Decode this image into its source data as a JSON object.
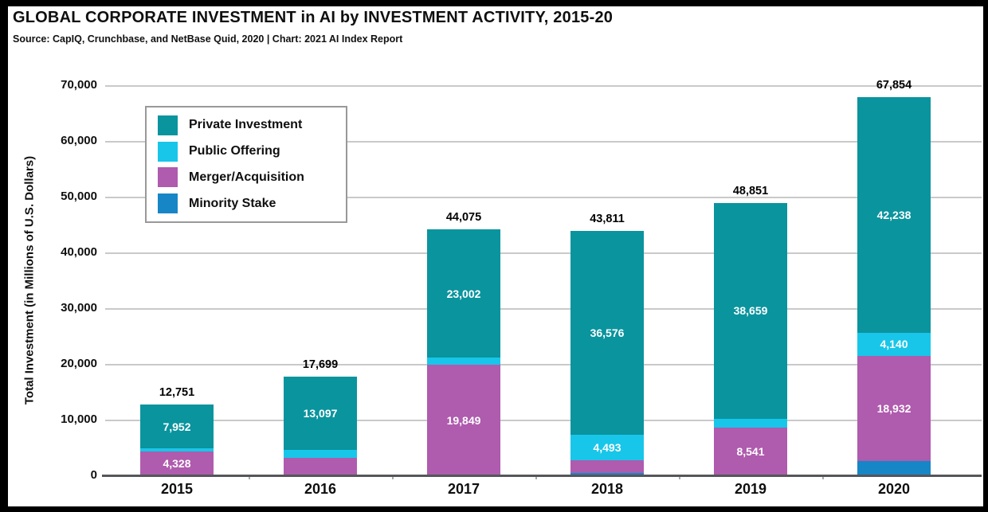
{
  "header": {
    "title": "GLOBAL CORPORATE INVESTMENT in AI by INVESTMENT ACTIVITY, 2015-20",
    "source": "Source: CapIQ, Crunchbase, and NetBase Quid, 2020 | Chart: 2021 AI Index Report"
  },
  "y_axis": {
    "title": "Total Investment (in Millions of U.S. Dollars)",
    "tick_labels": [
      "0",
      "10,000",
      "20,000",
      "30,000",
      "40,000",
      "50,000",
      "60,000",
      "70,000"
    ]
  },
  "legend": {
    "items": [
      {
        "label": "Private Investment",
        "color": "#0A949E"
      },
      {
        "label": "Public Offering",
        "color": "#18C6E9"
      },
      {
        "label": "Merger/Acquisition",
        "color": "#AF5BAE"
      },
      {
        "label": "Minority Stake",
        "color": "#1786C6"
      }
    ]
  },
  "chart_data": {
    "type": "bar",
    "stacked": true,
    "title": "GLOBAL CORPORATE INVESTMENT in AI by INVESTMENT ACTIVITY, 2015-20",
    "xlabel": "",
    "ylabel": "Total Investment (in Millions of U.S. Dollars)",
    "ylim": [
      0,
      70000
    ],
    "grid": true,
    "legend_position": "top-left",
    "categories": [
      "2015",
      "2016",
      "2017",
      "2018",
      "2019",
      "2020"
    ],
    "series_note": "series listed bottom-to-top of stack; unlabeled small segments estimated from pixel heights",
    "series": [
      {
        "name": "Minority Stake",
        "color": "#1786C6",
        "values": [
          0,
          0,
          0,
          440,
          0,
          2544
        ],
        "label_shown": [
          false,
          false,
          false,
          false,
          false,
          false
        ]
      },
      {
        "name": "Merger/Acquisition",
        "color": "#AF5BAE",
        "values": [
          4328,
          3143,
          19849,
          2302,
          8541,
          18932
        ],
        "label_shown": [
          true,
          false,
          true,
          false,
          true,
          true
        ]
      },
      {
        "name": "Public Offering",
        "color": "#18C6E9",
        "values": [
          471,
          1459,
          1224,
          4493,
          1651,
          4140
        ],
        "label_shown": [
          false,
          false,
          false,
          true,
          false,
          true
        ]
      },
      {
        "name": "Private Investment",
        "color": "#0A949E",
        "values": [
          7952,
          13097,
          23002,
          36576,
          38659,
          42238
        ],
        "label_shown": [
          true,
          true,
          true,
          true,
          true,
          true
        ]
      }
    ],
    "totals": [
      12751,
      17699,
      44075,
      43811,
      48851,
      67854
    ],
    "total_labels": [
      "12,751",
      "17,699",
      "44,075",
      "43,811",
      "48,851",
      "67,854"
    ]
  },
  "colors": {
    "private_investment": "#0A949E",
    "public_offering": "#18C6E9",
    "merger_acquisition": "#AF5BAE",
    "minority_stake": "#1786C6",
    "gridline": "#C9C9C9",
    "axis_line": "#54565A",
    "frame": "#000000",
    "text": "#0F0F0F"
  }
}
